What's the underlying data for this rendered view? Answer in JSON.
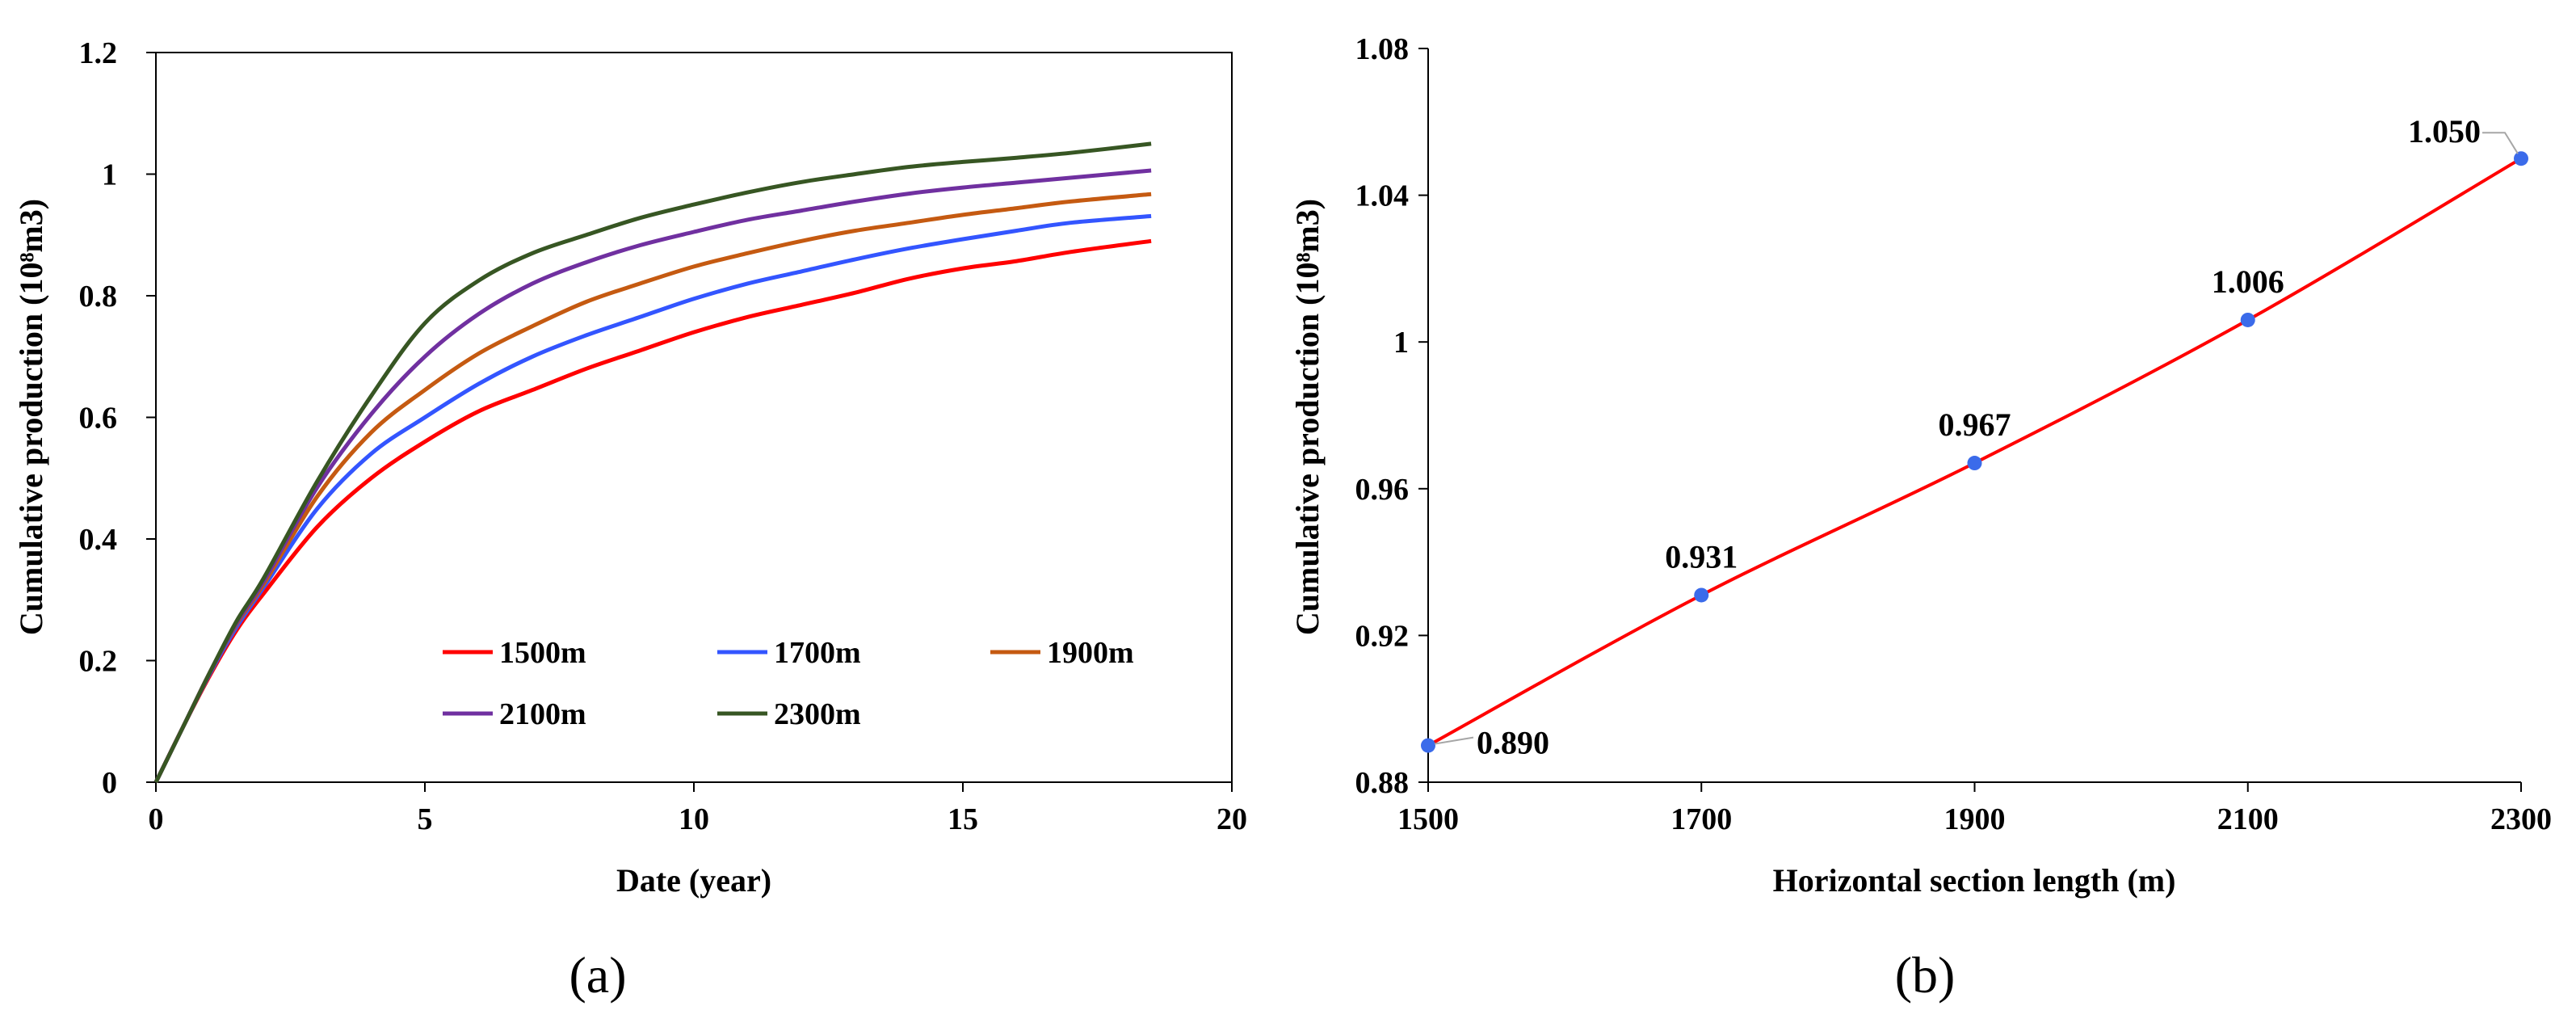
{
  "chart_data": [
    {
      "type": "line",
      "panel_label": "(a)",
      "xlabel": "Date (year)",
      "ylabel": "Cumulative production (10⁸m3)",
      "xlim": [
        0,
        20
      ],
      "ylim": [
        0,
        1.2
      ],
      "xticks": [
        0,
        5,
        10,
        15,
        20
      ],
      "xtick_labels": [
        "0",
        "5",
        "10",
        "15",
        "20"
      ],
      "yticks": [
        0,
        0.2,
        0.4,
        0.6,
        0.8,
        1.0,
        1.2
      ],
      "ytick_labels": [
        "0",
        "0.2",
        "0.4",
        "0.6",
        "0.8",
        "1",
        "1.2"
      ],
      "grid": false,
      "legend_position": "lower-right",
      "series": [
        {
          "name": "1500m",
          "color": "#ff0000",
          "x": [
            0,
            0.5,
            1,
            1.5,
            2,
            3,
            4,
            5,
            6,
            7,
            8,
            9,
            10,
            11,
            12,
            13,
            14,
            15,
            16,
            17,
            18.5
          ],
          "y": [
            0,
            0.09,
            0.175,
            0.25,
            0.31,
            0.42,
            0.5,
            0.56,
            0.61,
            0.645,
            0.68,
            0.71,
            0.74,
            0.765,
            0.785,
            0.805,
            0.828,
            0.845,
            0.857,
            0.872,
            0.89
          ]
        },
        {
          "name": "1700m",
          "color": "#3355ff",
          "x": [
            0,
            0.5,
            1,
            1.5,
            2,
            3,
            4,
            5,
            6,
            7,
            8,
            9,
            10,
            11,
            12,
            13,
            14,
            15,
            16,
            17,
            18.5
          ],
          "y": [
            0,
            0.09,
            0.178,
            0.255,
            0.32,
            0.45,
            0.54,
            0.6,
            0.655,
            0.7,
            0.735,
            0.765,
            0.795,
            0.82,
            0.84,
            0.86,
            0.878,
            0.893,
            0.907,
            0.92,
            0.931
          ]
        },
        {
          "name": "1900m",
          "color": "#c55a11",
          "x": [
            0,
            0.5,
            1,
            1.5,
            2,
            3,
            4,
            5,
            6,
            7,
            8,
            9,
            10,
            11,
            12,
            13,
            14,
            15,
            16,
            17,
            18.5
          ],
          "y": [
            0,
            0.09,
            0.18,
            0.26,
            0.325,
            0.47,
            0.575,
            0.645,
            0.705,
            0.75,
            0.79,
            0.82,
            0.848,
            0.87,
            0.89,
            0.907,
            0.92,
            0.933,
            0.944,
            0.955,
            0.967
          ]
        },
        {
          "name": "2100m",
          "color": "#7030a0",
          "x": [
            0,
            0.5,
            1,
            1.5,
            2,
            3,
            4,
            5,
            6,
            7,
            8,
            9,
            10,
            11,
            12,
            13,
            14,
            15,
            16,
            17,
            18.5
          ],
          "y": [
            0,
            0.09,
            0.18,
            0.262,
            0.33,
            0.485,
            0.605,
            0.7,
            0.77,
            0.82,
            0.855,
            0.883,
            0.905,
            0.925,
            0.94,
            0.955,
            0.968,
            0.978,
            0.986,
            0.994,
            1.006
          ]
        },
        {
          "name": "2300m",
          "color": "#375623",
          "x": [
            0,
            0.5,
            1,
            1.5,
            2,
            3,
            4,
            5,
            6,
            7,
            8,
            9,
            10,
            11,
            12,
            13,
            14,
            15,
            16,
            17,
            18.5
          ],
          "y": [
            0,
            0.09,
            0.18,
            0.265,
            0.335,
            0.495,
            0.635,
            0.755,
            0.825,
            0.87,
            0.9,
            0.928,
            0.95,
            0.97,
            0.987,
            1.0,
            1.012,
            1.02,
            1.027,
            1.035,
            1.05
          ]
        }
      ]
    },
    {
      "type": "line",
      "panel_label": "(b)",
      "xlabel": "Horizontal section length (m)",
      "ylabel": "Cumulative production (10⁸m3)",
      "xlim": [
        1500,
        2300
      ],
      "ylim": [
        0.88,
        1.08
      ],
      "xticks": [
        1500,
        1700,
        1900,
        2100,
        2300
      ],
      "xtick_labels": [
        "1500",
        "1700",
        "1900",
        "2100",
        "2300"
      ],
      "yticks": [
        0.88,
        0.92,
        0.96,
        1.0,
        1.04,
        1.08
      ],
      "ytick_labels": [
        "0.88",
        "0.92",
        "0.96",
        "1",
        "1.04",
        "1.08"
      ],
      "grid": false,
      "line_color": "#ff0000",
      "marker_color": "#3b6bea",
      "x": [
        1500,
        1700,
        1900,
        2100,
        2300
      ],
      "y": [
        0.89,
        0.931,
        0.967,
        1.006,
        1.05
      ],
      "data_labels": [
        "0.890",
        "0.931",
        "0.967",
        "1.006",
        "1.050"
      ]
    }
  ]
}
